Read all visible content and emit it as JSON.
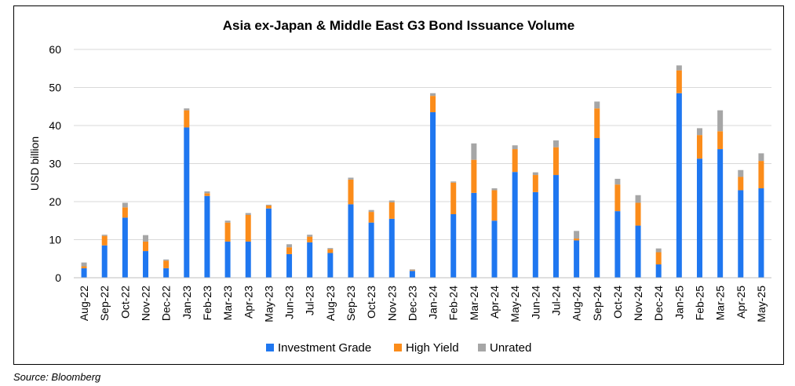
{
  "source": "Source: Bloomberg",
  "chart_data": {
    "type": "bar",
    "stacked": true,
    "title": "Asia ex-Japan & Middle East G3 Bond Issuance Volume",
    "xlabel": "",
    "ylabel": "USD billion",
    "ylim": [
      0,
      60
    ],
    "yticks": [
      0,
      10,
      20,
      30,
      40,
      50,
      60
    ],
    "grid": true,
    "legend_position": "bottom",
    "categories": [
      "Aug-22",
      "Sep-22",
      "Oct-22",
      "Nov-22",
      "Dec-22",
      "Jan-23",
      "Feb-23",
      "Mar-23",
      "Apr-23",
      "May-23",
      "Jun-23",
      "Jul-23",
      "Aug-23",
      "Sep-23",
      "Oct-23",
      "Nov-23",
      "Dec-23",
      "Jan-24",
      "Feb-24",
      "Mar-24",
      "Apr-24",
      "May-24",
      "Jun-24",
      "Jul-24",
      "Aug-24",
      "Sep-24",
      "Oct-24",
      "Nov-24",
      "Dec-24",
      "Jan-25",
      "Feb-25",
      "Mar-25",
      "Apr-25",
      "May-25"
    ],
    "series": [
      {
        "name": "Investment Grade",
        "color": "#1f77f0",
        "values": [
          2.5,
          8.5,
          15.8,
          7.0,
          2.5,
          39.5,
          21.5,
          9.5,
          9.5,
          18.2,
          6.2,
          9.3,
          6.5,
          19.3,
          14.5,
          15.5,
          1.8,
          43.5,
          16.7,
          22.3,
          15.0,
          27.8,
          22.5,
          27.0,
          9.8,
          36.7,
          17.5,
          13.7,
          3.5,
          48.5,
          31.3,
          33.8,
          23.0,
          23.5
        ]
      },
      {
        "name": "High Yield",
        "color": "#fb8c1a",
        "values": [
          0.5,
          2.5,
          2.7,
          2.5,
          2.0,
          4.5,
          0.7,
          5.0,
          7.0,
          0.8,
          1.8,
          1.5,
          1.0,
          6.5,
          2.8,
          4.3,
          0.2,
          4.3,
          8.3,
          8.7,
          8.0,
          6.0,
          4.5,
          7.3,
          0.5,
          7.8,
          7.0,
          6.0,
          3.2,
          6.0,
          6.2,
          4.7,
          3.5,
          7.2
        ]
      },
      {
        "name": "Unrated",
        "color": "#a6a6a6",
        "values": [
          1.0,
          0.3,
          1.2,
          1.7,
          0.3,
          0.5,
          0.5,
          0.5,
          0.5,
          0.2,
          0.8,
          0.5,
          0.3,
          0.5,
          0.5,
          0.5,
          0.2,
          0.7,
          0.3,
          4.3,
          0.5,
          1.0,
          0.7,
          1.8,
          2.0,
          1.8,
          1.5,
          2.0,
          1.0,
          1.3,
          1.8,
          5.5,
          1.8,
          2.0
        ]
      }
    ]
  }
}
